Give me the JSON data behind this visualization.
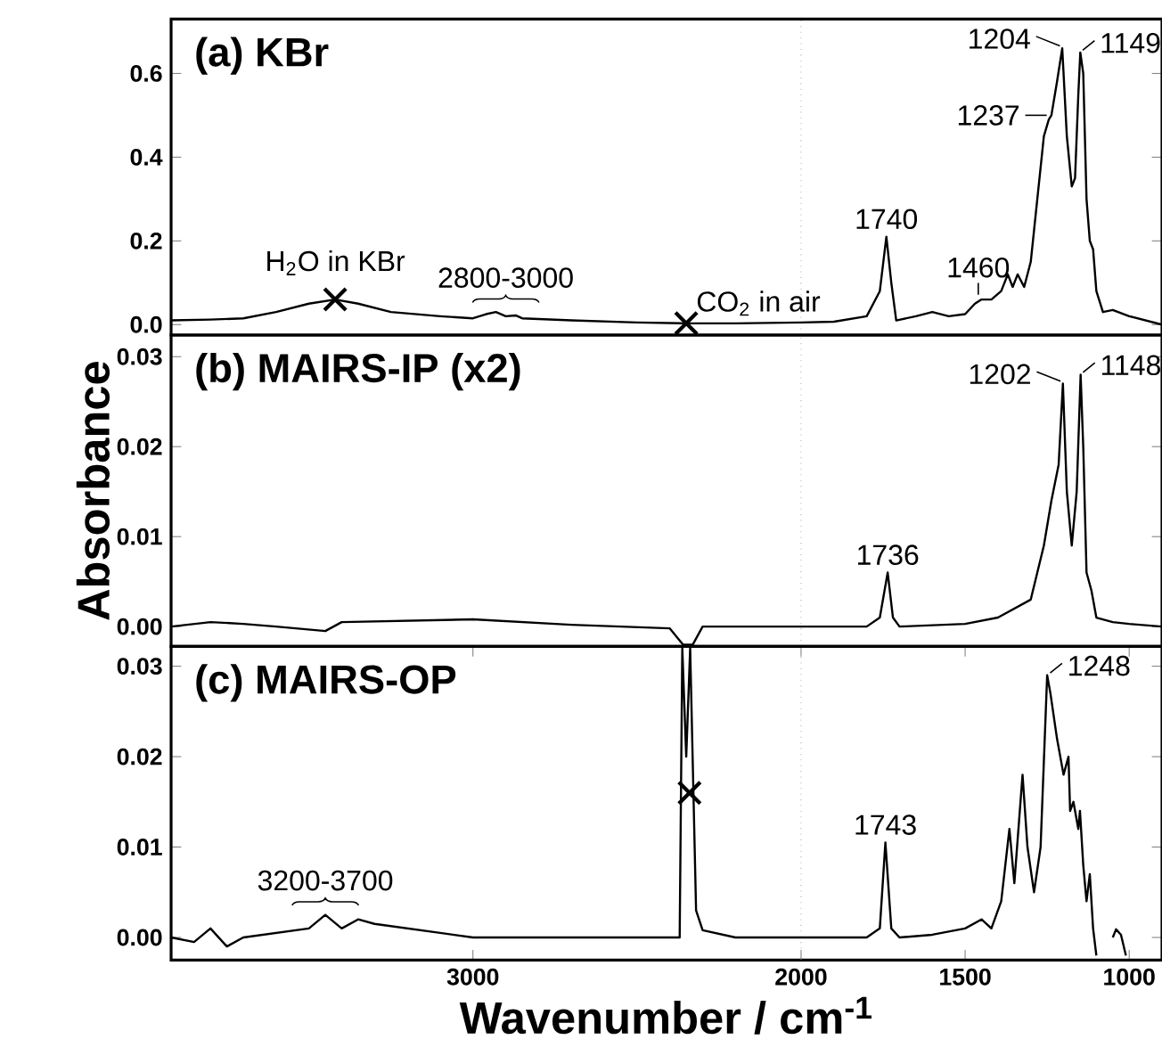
{
  "chart_data": [
    {
      "type": "line",
      "title": "(a) KBr",
      "xlim": [
        3920,
        900
      ],
      "ylim": [
        -0.025,
        0.73
      ],
      "yticks": [
        {
          "value": 0,
          "label": "0.0"
        },
        {
          "value": 0.2,
          "label": "0.2"
        },
        {
          "value": 0.4,
          "label": "0.4"
        },
        {
          "value": 0.6,
          "label": "0.6"
        }
      ],
      "tick_labels": "y",
      "ref_lines": [
        {
          "axis": "x",
          "value": 2000,
          "color": "#b0b0b0",
          "line_style": "dotted"
        }
      ],
      "annotations": [
        {
          "text": "H$_{2}$O in KBr",
          "x": 3420,
          "y": 0.06
        },
        {
          "text": "2800-3000",
          "x": 2900,
          "y": 0.03
        },
        {
          "text": "CO$_{2}$ in air",
          "x": 2350,
          "y": 0.003
        },
        {
          "text": "1740",
          "x": 1740,
          "y": 0.21
        },
        {
          "text": "1460",
          "x": 1460,
          "y": 0.06
        },
        {
          "text": "1237",
          "x": 1237,
          "y": 0.5
        },
        {
          "text": "1204",
          "x": 1204,
          "y": 0.66
        },
        {
          "text": "1149",
          "x": 1149,
          "y": 0.65
        }
      ],
      "series": [
        {
          "color": "#000000",
          "x": [
            3920,
            3800,
            3700,
            3600,
            3500,
            3420,
            3350,
            3250,
            3100,
            3000,
            2960,
            2930,
            2900,
            2870,
            2850,
            2700,
            2500,
            2350,
            2200,
            2000,
            1900,
            1800,
            1760,
            1740,
            1725,
            1710,
            1650,
            1600,
            1550,
            1500,
            1470,
            1450,
            1420,
            1390,
            1370,
            1355,
            1340,
            1320,
            1300,
            1280,
            1260,
            1245,
            1237,
            1220,
            1204,
            1190,
            1175,
            1165,
            1155,
            1149,
            1140,
            1130,
            1120,
            1110,
            1100,
            1080,
            1050,
            1000,
            950,
            900
          ],
          "values": [
            0.01,
            0.012,
            0.015,
            0.03,
            0.05,
            0.06,
            0.05,
            0.03,
            0.02,
            0.015,
            0.025,
            0.03,
            0.02,
            0.022,
            0.015,
            0.01,
            0.005,
            0.003,
            0.003,
            0.005,
            0.007,
            0.02,
            0.08,
            0.21,
            0.1,
            0.01,
            0.02,
            0.03,
            0.02,
            0.025,
            0.05,
            0.06,
            0.06,
            0.08,
            0.12,
            0.09,
            0.12,
            0.09,
            0.15,
            0.3,
            0.45,
            0.49,
            0.5,
            0.58,
            0.66,
            0.45,
            0.33,
            0.35,
            0.55,
            0.65,
            0.6,
            0.3,
            0.2,
            0.18,
            0.08,
            0.03,
            0.035,
            0.02,
            0.01,
            0.0
          ]
        }
      ]
    },
    {
      "type": "line",
      "title": "(b) MAIRS-IP (x2)",
      "ylabel": "Absorbance",
      "xlim": [
        3920,
        900
      ],
      "ylim": [
        -0.0022,
        0.0324
      ],
      "yticks": [
        {
          "value": 0,
          "label": "0.00"
        },
        {
          "value": 0.01,
          "label": "0.01"
        },
        {
          "value": 0.02,
          "label": "0.02"
        },
        {
          "value": 0.03,
          "label": "0.03"
        }
      ],
      "tick_labels": "y",
      "ref_lines": [
        {
          "axis": "x",
          "value": 2000,
          "color": "#b0b0b0",
          "line_style": "dotted"
        }
      ],
      "annotations": [
        {
          "text": "1736",
          "x": 1736,
          "y": 0.006
        },
        {
          "text": "1202",
          "x": 1202,
          "y": 0.027
        },
        {
          "text": "1148",
          "x": 1148,
          "y": 0.028
        }
      ],
      "series": [
        {
          "color": "#000000",
          "x": [
            3920,
            3800,
            3700,
            3600,
            3450,
            3400,
            3000,
            2700,
            2400,
            2360,
            2330,
            2300,
            2000,
            1800,
            1760,
            1736,
            1720,
            1700,
            1500,
            1400,
            1300,
            1260,
            1237,
            1215,
            1202,
            1190,
            1175,
            1160,
            1148,
            1140,
            1130,
            1115,
            1100,
            1050,
            1000,
            900
          ],
          "values": [
            0.0,
            0.0005,
            0.0003,
            0.0,
            -0.0005,
            0.0005,
            0.0008,
            0.0002,
            -0.0002,
            -0.002,
            -0.002,
            0.0,
            0.0,
            0.0,
            0.001,
            0.006,
            0.001,
            0.0,
            0.0003,
            0.001,
            0.003,
            0.009,
            0.014,
            0.018,
            0.027,
            0.015,
            0.009,
            0.015,
            0.028,
            0.02,
            0.006,
            0.004,
            0.001,
            0.0005,
            0.0003,
            0.0
          ]
        }
      ]
    },
    {
      "type": "line",
      "title": "(c) MAIRS-OP",
      "xlabel": "Wavenumber / cm$^{-1}$",
      "xlim": [
        3920,
        900
      ],
      "ylim": [
        -0.0025,
        0.0322
      ],
      "xticks": [
        3000,
        2000,
        1500,
        1000
      ],
      "yticks": [
        {
          "value": 0,
          "label": "0.00"
        },
        {
          "value": 0.01,
          "label": "0.01"
        },
        {
          "value": 0.02,
          "label": "0.02"
        },
        {
          "value": 0.03,
          "label": "0.03"
        }
      ],
      "ref_lines": [
        {
          "axis": "x",
          "value": 2000,
          "color": "#b0b0b0",
          "line_style": "dotted"
        }
      ],
      "annotations": [
        {
          "text": "3200-3700",
          "x": 3450,
          "y": 0.0025
        },
        {
          "text": "1743",
          "x": 1743,
          "y": 0.0105
        },
        {
          "text": "1248",
          "x": 1248,
          "y": 0.029
        }
      ],
      "series": [
        {
          "color": "#000000",
          "x": [
            3920,
            3850,
            3800,
            3750,
            3700,
            3600,
            3500,
            3450,
            3400,
            3350,
            3300,
            3100,
            3000,
            2700,
            2400,
            2370,
            2362,
            2350,
            2338,
            2320,
            2300,
            2200,
            2000,
            1800,
            1760,
            1743,
            1725,
            1700,
            1600,
            1500,
            1450,
            1420,
            1390,
            1365,
            1350,
            1325,
            1310,
            1290,
            1270,
            1250,
            1240,
            1220,
            1200,
            1185,
            1180,
            1170,
            1155,
            1150,
            1140,
            1130,
            1120,
            1110,
            1100,
            1070,
            1050,
            1040,
            1025,
            1010
          ],
          "values": [
            0.0,
            -0.0005,
            0.001,
            -0.001,
            0.0,
            0.0005,
            0.001,
            0.0025,
            0.001,
            0.002,
            0.0015,
            0.0005,
            0.0,
            0.0,
            0.0,
            0.0,
            0.032,
            0.02,
            0.032,
            0.003,
            0.0008,
            0.0,
            0.0,
            0.0,
            0.001,
            0.0105,
            0.001,
            0.0,
            0.0003,
            0.001,
            0.002,
            0.001,
            0.004,
            0.012,
            0.006,
            0.018,
            0.01,
            0.005,
            0.01,
            0.029,
            0.027,
            0.022,
            0.018,
            0.02,
            0.014,
            0.015,
            0.012,
            0.014,
            0.008,
            0.004,
            0.007,
            0.001,
            -0.002,
            null,
            0.0,
            0.0009,
            0.0003,
            -0.002
          ]
        }
      ]
    }
  ]
}
